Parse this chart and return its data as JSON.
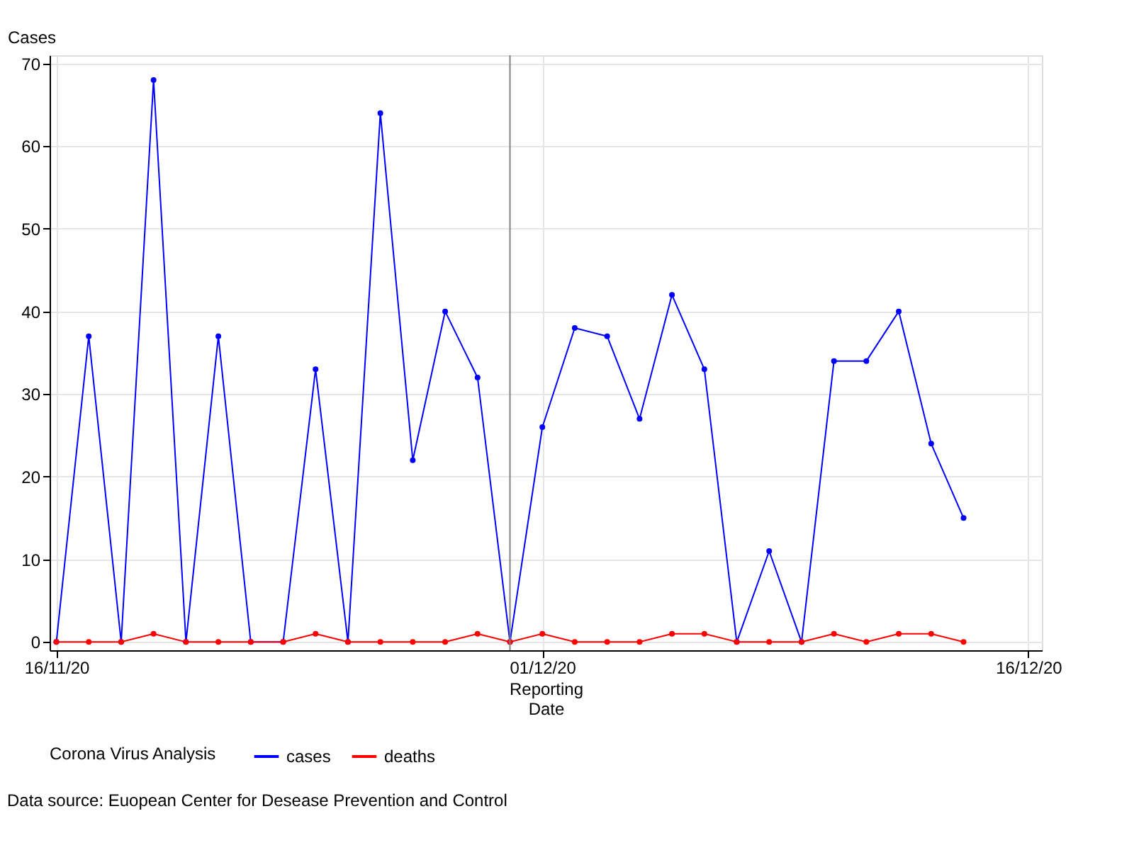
{
  "chart_data": {
    "type": "line",
    "ylabel": "Cases",
    "xlabel": "Reporting\nDate",
    "legend_title": "Corona Virus Analysis",
    "annotations": [
      "Data source: Euopean Center for Desease Prevention and Control"
    ],
    "x": [
      "2020-11-16",
      "2020-11-17",
      "2020-11-18",
      "2020-11-19",
      "2020-11-20",
      "2020-11-21",
      "2020-11-22",
      "2020-11-23",
      "2020-11-24",
      "2020-11-25",
      "2020-11-26",
      "2020-11-27",
      "2020-11-28",
      "2020-11-29",
      "2020-11-30",
      "2020-12-01",
      "2020-12-02",
      "2020-12-03",
      "2020-12-04",
      "2020-12-05",
      "2020-12-06",
      "2020-12-07",
      "2020-12-08",
      "2020-12-09",
      "2020-12-10",
      "2020-12-11",
      "2020-12-12",
      "2020-12-13",
      "2020-12-14"
    ],
    "series": [
      {
        "name": "cases",
        "color": "#0000ff",
        "values": [
          0,
          37,
          0,
          68,
          0,
          37,
          0,
          0,
          33,
          0,
          64,
          22,
          40,
          32,
          0,
          26,
          38,
          37,
          27,
          42,
          33,
          0,
          11,
          0,
          34,
          34,
          40,
          24,
          15
        ]
      },
      {
        "name": "deaths",
        "color": "#ff0000",
        "values": [
          0,
          0,
          0,
          1,
          0,
          0,
          0,
          0,
          1,
          0,
          0,
          0,
          0,
          1,
          0,
          1,
          0,
          0,
          0,
          1,
          1,
          0,
          0,
          0,
          1,
          0,
          1,
          1,
          0
        ]
      }
    ],
    "xlim": [
      "2020-11-15T19:00",
      "2020-12-16T10:00"
    ],
    "xticks": [
      {
        "value": "2020-11-16",
        "label": "16/11/20"
      },
      {
        "value": "2020-12-01",
        "label": "01/12/20"
      },
      {
        "value": "2020-12-16",
        "label": "16/12/20"
      }
    ],
    "ylim": [
      -1,
      71
    ],
    "yticks": [
      0,
      10,
      20,
      30,
      40,
      50,
      60,
      70
    ],
    "ref_lines": [
      {
        "axis": "x",
        "value": "2020-11-30",
        "color": "#808080"
      }
    ],
    "grid": true,
    "legend": "bottom",
    "marker": "circle",
    "line_style": "solid"
  }
}
